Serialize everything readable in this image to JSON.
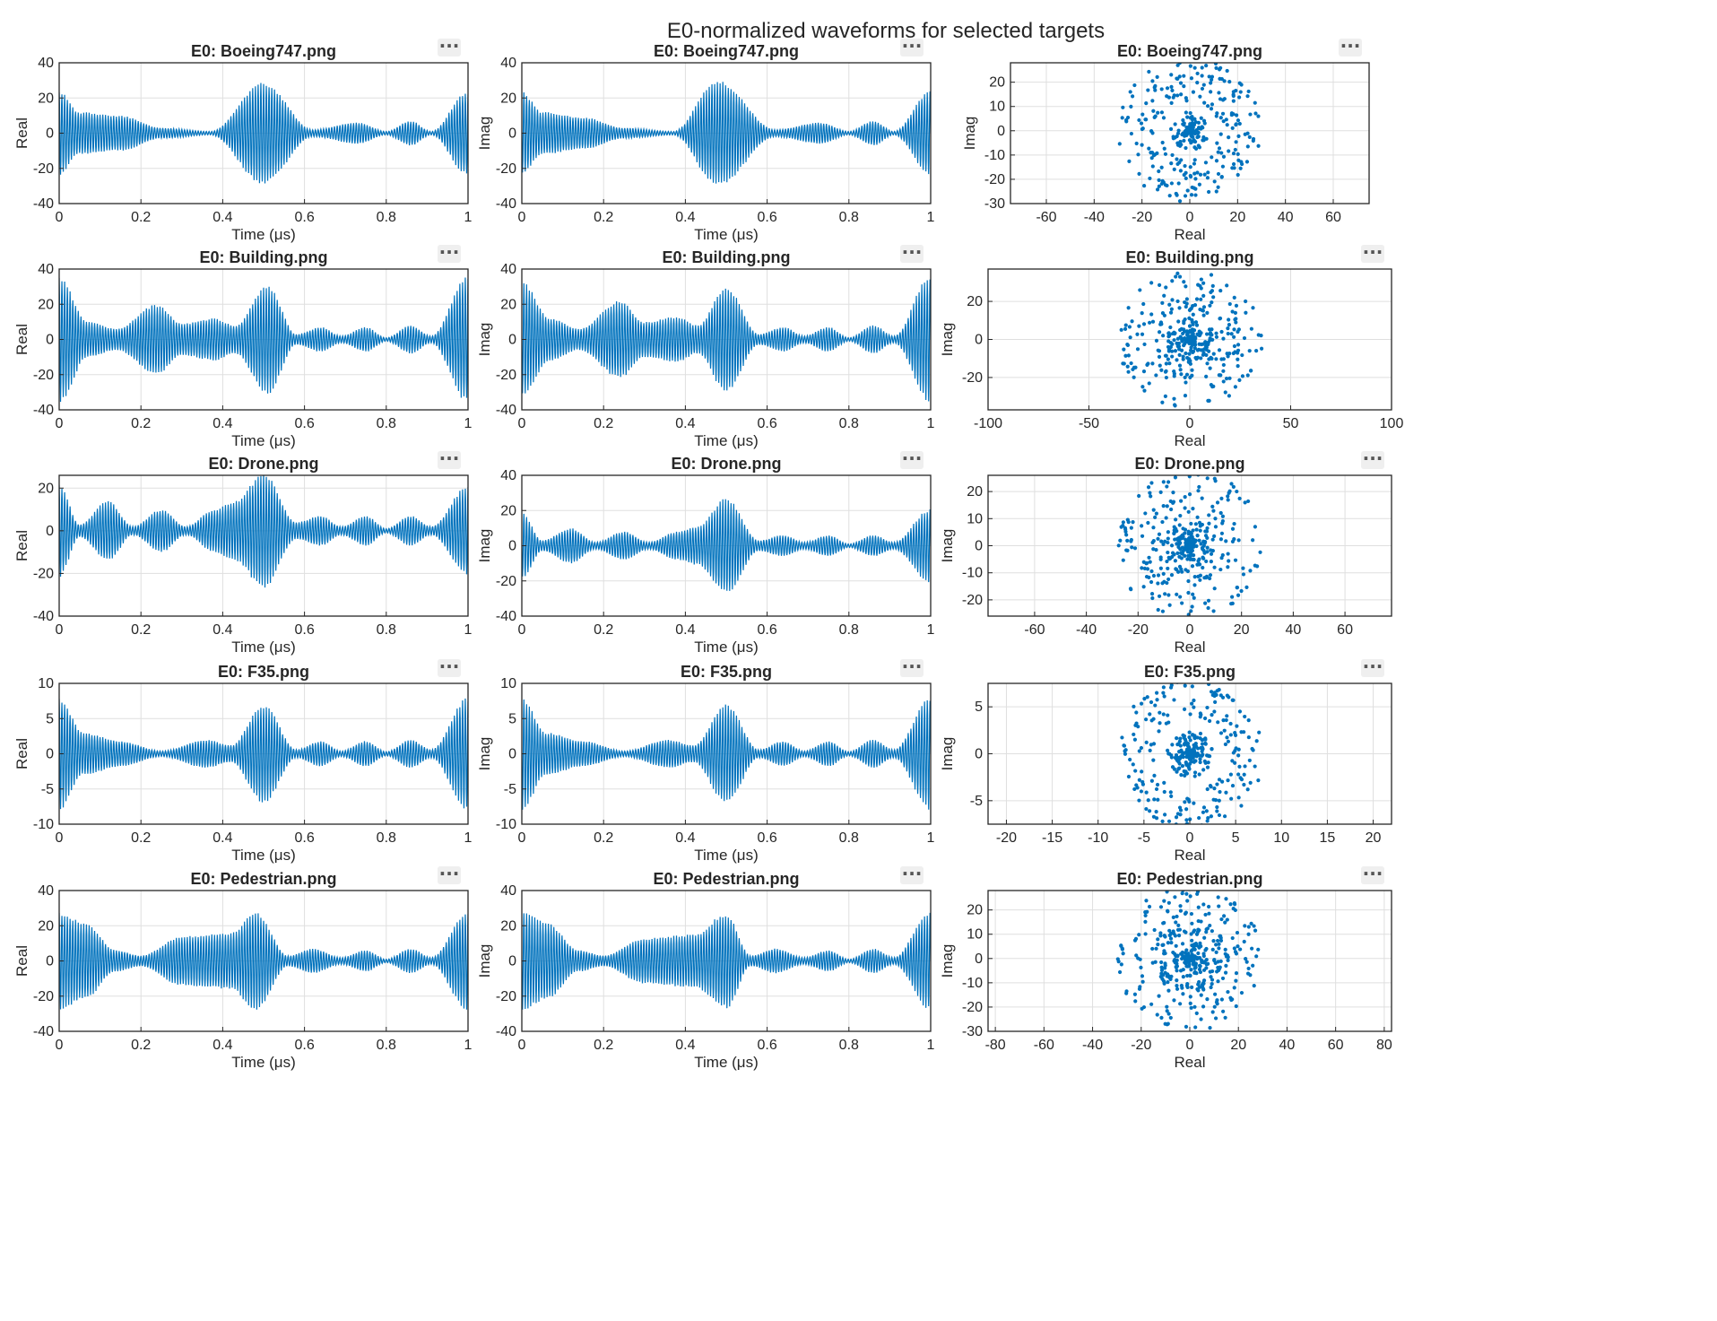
{
  "figure_title": "E0-normalized waveforms for selected targets",
  "toolbar_icon": "more-options-icon",
  "toolbar_symbol": "···",
  "colors": {
    "series": "#0072BD",
    "axes": "#262626",
    "grid": "#dfdfdf",
    "background": "#ffffff"
  },
  "time_tick_labels": [
    "0",
    "0.2",
    "0.4",
    "0.6",
    "0.8",
    "1"
  ],
  "chart_data": [
    {
      "type": "line",
      "title": "E0: Boeing747.png",
      "series": [
        {
          "values": "real"
        }
      ],
      "xlabel": "Time (μs)",
      "ylabel": "Real",
      "xlim": [
        0,
        1
      ],
      "ylim": [
        -40,
        40
      ],
      "yticks": [
        -40,
        -20,
        0,
        20,
        40
      ],
      "grid": true,
      "envelope": [
        [
          0,
          24
        ],
        [
          0.05,
          12
        ],
        [
          0.15,
          10
        ],
        [
          0.25,
          3
        ],
        [
          0.37,
          1
        ],
        [
          0.5,
          29
        ],
        [
          0.62,
          2
        ],
        [
          0.73,
          6
        ],
        [
          0.8,
          1
        ],
        [
          0.86,
          7
        ],
        [
          0.91,
          1
        ],
        [
          1,
          24
        ]
      ]
    },
    {
      "type": "line",
      "title": "E0: Boeing747.png",
      "series": [
        {
          "values": "imag"
        }
      ],
      "xlabel": "Time (μs)",
      "ylabel": "Imag",
      "xlim": [
        0,
        1
      ],
      "ylim": [
        -40,
        40
      ],
      "yticks": [
        -40,
        -20,
        0,
        20,
        40
      ],
      "grid": true,
      "envelope": [
        [
          0,
          24
        ],
        [
          0.05,
          12
        ],
        [
          0.15,
          9
        ],
        [
          0.25,
          3
        ],
        [
          0.37,
          1
        ],
        [
          0.48,
          30
        ],
        [
          0.62,
          2
        ],
        [
          0.73,
          6
        ],
        [
          0.8,
          1
        ],
        [
          0.86,
          7
        ],
        [
          0.91,
          1
        ],
        [
          1,
          24
        ]
      ]
    },
    {
      "type": "scatter",
      "title": "E0: Boeing747.png",
      "xlabel": "Real",
      "ylabel": "Imag",
      "xlim": [
        -75,
        75
      ],
      "ylim": [
        -30,
        28
      ],
      "xticks": [
        -60,
        -40,
        -20,
        0,
        20,
        40,
        60
      ],
      "yticks": [
        -30,
        -20,
        -10,
        0,
        10,
        20
      ],
      "grid": true,
      "clusters": [
        {
          "n": 110,
          "rmin": 0,
          "rmax": 8
        },
        {
          "n": 120,
          "rmin": 12,
          "rmax": 22
        },
        {
          "n": 110,
          "rmin": 22,
          "rmax": 30
        }
      ]
    },
    {
      "type": "line",
      "title": "E0: Building.png",
      "series": [
        {
          "values": "real"
        }
      ],
      "xlabel": "Time (μs)",
      "ylabel": "Real",
      "xlim": [
        0,
        1
      ],
      "ylim": [
        -40,
        40
      ],
      "yticks": [
        -40,
        -20,
        0,
        20,
        40
      ],
      "grid": true,
      "envelope": [
        [
          0,
          36
        ],
        [
          0.07,
          10
        ],
        [
          0.14,
          6
        ],
        [
          0.24,
          20
        ],
        [
          0.3,
          9
        ],
        [
          0.38,
          12
        ],
        [
          0.43,
          8
        ],
        [
          0.51,
          31
        ],
        [
          0.58,
          3
        ],
        [
          0.64,
          7
        ],
        [
          0.69,
          2
        ],
        [
          0.75,
          7
        ],
        [
          0.8,
          1
        ],
        [
          0.86,
          8
        ],
        [
          0.91,
          2
        ],
        [
          1,
          36
        ]
      ]
    },
    {
      "type": "line",
      "title": "E0: Building.png",
      "series": [
        {
          "values": "imag"
        }
      ],
      "xlabel": "Time (μs)",
      "ylabel": "Imag",
      "xlim": [
        0,
        1
      ],
      "ylim": [
        -40,
        40
      ],
      "yticks": [
        -40,
        -20,
        0,
        20,
        40
      ],
      "grid": true,
      "envelope": [
        [
          0,
          33
        ],
        [
          0.07,
          12
        ],
        [
          0.14,
          6
        ],
        [
          0.24,
          22
        ],
        [
          0.3,
          10
        ],
        [
          0.38,
          13
        ],
        [
          0.43,
          8
        ],
        [
          0.5,
          30
        ],
        [
          0.58,
          3
        ],
        [
          0.64,
          7
        ],
        [
          0.69,
          2
        ],
        [
          0.75,
          7
        ],
        [
          0.8,
          1
        ],
        [
          0.86,
          8
        ],
        [
          0.91,
          2
        ],
        [
          1,
          36
        ]
      ]
    },
    {
      "type": "scatter",
      "title": "E0: Building.png",
      "xlabel": "Real",
      "ylabel": "Imag",
      "xlim": [
        -100,
        100
      ],
      "ylim": [
        -37,
        37
      ],
      "xticks": [
        -100,
        -50,
        0,
        50,
        100
      ],
      "yticks": [
        -20,
        0,
        20
      ],
      "grid": true,
      "clusters": [
        {
          "n": 170,
          "rmin": 0,
          "rmax": 12
        },
        {
          "n": 120,
          "rmin": 12,
          "rmax": 26
        },
        {
          "n": 90,
          "rmin": 26,
          "rmax": 36
        }
      ]
    },
    {
      "type": "line",
      "title": "E0: Drone.png",
      "series": [
        {
          "values": "real"
        }
      ],
      "xlabel": "Time (μs)",
      "ylabel": "Real",
      "xlim": [
        0,
        1
      ],
      "ylim": [
        -40,
        26
      ],
      "yticks": [
        -40,
        -20,
        0,
        20
      ],
      "grid": true,
      "envelope": [
        [
          0,
          22
        ],
        [
          0.05,
          3
        ],
        [
          0.12,
          14
        ],
        [
          0.18,
          2
        ],
        [
          0.25,
          10
        ],
        [
          0.31,
          2
        ],
        [
          0.38,
          10
        ],
        [
          0.43,
          14
        ],
        [
          0.5,
          27
        ],
        [
          0.58,
          4
        ],
        [
          0.64,
          7
        ],
        [
          0.69,
          2
        ],
        [
          0.75,
          7
        ],
        [
          0.8,
          1
        ],
        [
          0.86,
          7
        ],
        [
          0.91,
          2
        ],
        [
          1,
          21
        ]
      ]
    },
    {
      "type": "line",
      "title": "E0: Drone.png",
      "series": [
        {
          "values": "imag"
        }
      ],
      "xlabel": "Time (μs)",
      "ylabel": "Imag",
      "xlim": [
        0,
        1
      ],
      "ylim": [
        -40,
        40
      ],
      "yticks": [
        -40,
        -20,
        0,
        20,
        40
      ],
      "grid": true,
      "envelope": [
        [
          0,
          19
        ],
        [
          0.05,
          3
        ],
        [
          0.12,
          10
        ],
        [
          0.18,
          2
        ],
        [
          0.25,
          8
        ],
        [
          0.31,
          2
        ],
        [
          0.38,
          8
        ],
        [
          0.43,
          11
        ],
        [
          0.5,
          27
        ],
        [
          0.58,
          3
        ],
        [
          0.64,
          6
        ],
        [
          0.69,
          2
        ],
        [
          0.75,
          6
        ],
        [
          0.8,
          1
        ],
        [
          0.86,
          6
        ],
        [
          0.91,
          2
        ],
        [
          1,
          21
        ]
      ]
    },
    {
      "type": "scatter",
      "title": "E0: Drone.png",
      "xlabel": "Real",
      "ylabel": "Imag",
      "xlim": [
        -78,
        78
      ],
      "ylim": [
        -26,
        26
      ],
      "xticks": [
        -60,
        -40,
        -20,
        0,
        20,
        40,
        60
      ],
      "yticks": [
        -20,
        -10,
        0,
        10,
        20
      ],
      "grid": true,
      "clusters": [
        {
          "n": 160,
          "rmin": 0,
          "rmax": 9
        },
        {
          "n": 120,
          "rmin": 9,
          "rmax": 20
        },
        {
          "n": 90,
          "rmin": 20,
          "rmax": 28
        }
      ]
    },
    {
      "type": "line",
      "title": "E0: F35.png",
      "series": [
        {
          "values": "real"
        }
      ],
      "xlabel": "Time (μs)",
      "ylabel": "Real",
      "xlim": [
        0,
        1
      ],
      "ylim": [
        -10,
        10
      ],
      "yticks": [
        -10,
        -5,
        0,
        5,
        10
      ],
      "grid": true,
      "envelope": [
        [
          0,
          8
        ],
        [
          0.06,
          3
        ],
        [
          0.15,
          1.8
        ],
        [
          0.25,
          0.4
        ],
        [
          0.36,
          2
        ],
        [
          0.42,
          1.2
        ],
        [
          0.5,
          7
        ],
        [
          0.58,
          0.6
        ],
        [
          0.64,
          1.8
        ],
        [
          0.69,
          0.4
        ],
        [
          0.75,
          1.8
        ],
        [
          0.8,
          0.3
        ],
        [
          0.86,
          2
        ],
        [
          0.91,
          0.6
        ],
        [
          1,
          8
        ]
      ]
    },
    {
      "type": "line",
      "title": "E0: F35.png",
      "series": [
        {
          "values": "imag"
        }
      ],
      "xlabel": "Time (μs)",
      "ylabel": "Imag",
      "xlim": [
        0,
        1
      ],
      "ylim": [
        -10,
        10
      ],
      "yticks": [
        -10,
        -5,
        0,
        5,
        10
      ],
      "grid": true,
      "envelope": [
        [
          0,
          8
        ],
        [
          0.06,
          3
        ],
        [
          0.15,
          1.8
        ],
        [
          0.25,
          0.4
        ],
        [
          0.36,
          2
        ],
        [
          0.42,
          1.2
        ],
        [
          0.5,
          7
        ],
        [
          0.58,
          0.6
        ],
        [
          0.64,
          1.8
        ],
        [
          0.69,
          0.4
        ],
        [
          0.75,
          1.8
        ],
        [
          0.8,
          0.3
        ],
        [
          0.86,
          2
        ],
        [
          0.91,
          0.6
        ],
        [
          1,
          8
        ]
      ]
    },
    {
      "type": "scatter",
      "title": "E0: F35.png",
      "xlabel": "Real",
      "ylabel": "Imag",
      "xlim": [
        -22,
        22
      ],
      "ylim": [
        -7.5,
        7.5
      ],
      "xticks": [
        -20,
        -15,
        -10,
        -5,
        0,
        5,
        10,
        15,
        20
      ],
      "yticks": [
        -5,
        0,
        5
      ],
      "grid": true,
      "clusters": [
        {
          "n": 170,
          "rmin": 0,
          "rmax": 2.5
        },
        {
          "n": 110,
          "rmin": 4,
          "rmax": 6.5
        },
        {
          "n": 90,
          "rmin": 6.5,
          "rmax": 8
        }
      ]
    },
    {
      "type": "line",
      "title": "E0: Pedestrian.png",
      "series": [
        {
          "values": "real"
        }
      ],
      "xlabel": "Time (μs)",
      "ylabel": "Real",
      "xlim": [
        0,
        1
      ],
      "ylim": [
        -40,
        40
      ],
      "yticks": [
        -40,
        -20,
        0,
        20,
        40
      ],
      "grid": true,
      "envelope": [
        [
          0,
          28
        ],
        [
          0.06,
          22
        ],
        [
          0.14,
          6
        ],
        [
          0.2,
          3
        ],
        [
          0.3,
          14
        ],
        [
          0.42,
          16
        ],
        [
          0.48,
          28
        ],
        [
          0.56,
          3
        ],
        [
          0.62,
          7
        ],
        [
          0.69,
          2
        ],
        [
          0.75,
          6
        ],
        [
          0.8,
          1
        ],
        [
          0.86,
          7
        ],
        [
          0.91,
          2
        ],
        [
          1,
          28
        ]
      ]
    },
    {
      "type": "line",
      "title": "E0: Pedestrian.png",
      "series": [
        {
          "values": "imag"
        }
      ],
      "xlabel": "Time (μs)",
      "ylabel": "Imag",
      "xlim": [
        0,
        1
      ],
      "ylim": [
        -40,
        40
      ],
      "yticks": [
        -40,
        -20,
        0,
        20,
        40
      ],
      "grid": true,
      "envelope": [
        [
          0,
          28
        ],
        [
          0.06,
          22
        ],
        [
          0.14,
          6
        ],
        [
          0.2,
          3
        ],
        [
          0.3,
          13
        ],
        [
          0.42,
          15
        ],
        [
          0.5,
          27
        ],
        [
          0.56,
          3
        ],
        [
          0.62,
          7
        ],
        [
          0.69,
          2
        ],
        [
          0.75,
          6
        ],
        [
          0.8,
          1
        ],
        [
          0.86,
          7
        ],
        [
          0.91,
          2
        ],
        [
          1,
          28
        ]
      ]
    },
    {
      "type": "scatter",
      "title": "E0: Pedestrian.png",
      "xlabel": "Real",
      "ylabel": "Imag",
      "xlim": [
        -83,
        83
      ],
      "ylim": [
        -30,
        28
      ],
      "xticks": [
        -80,
        -60,
        -40,
        -20,
        0,
        20,
        40,
        60,
        80
      ],
      "yticks": [
        -30,
        -20,
        -10,
        0,
        10,
        20
      ],
      "grid": true,
      "clusters": [
        {
          "n": 130,
          "rmin": 0,
          "rmax": 8
        },
        {
          "n": 130,
          "rmin": 10,
          "rmax": 16
        },
        {
          "n": 140,
          "rmin": 18,
          "rmax": 30
        }
      ]
    }
  ]
}
